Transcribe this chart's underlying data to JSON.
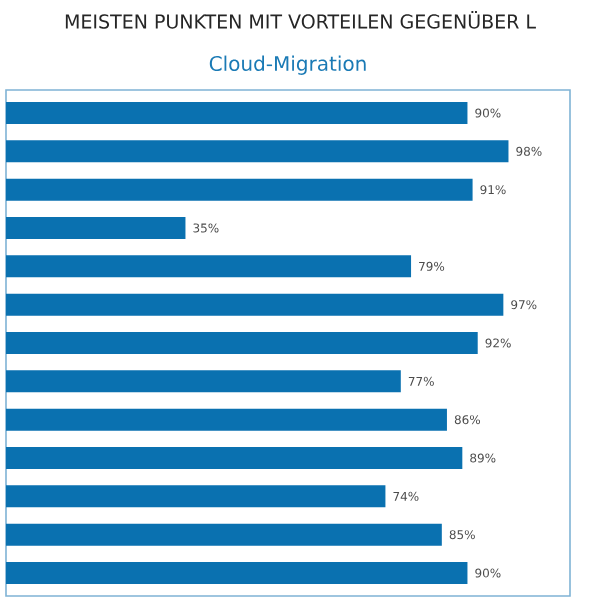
{
  "chart_data": {
    "type": "bar",
    "orientation": "horizontal",
    "title": "Cloud-Migration",
    "annotations": [
      "MEISTEN PUNKTEN MIT VORTEILEN GEGENÜBER L"
    ],
    "categories": [
      null,
      null,
      null,
      null,
      null,
      null,
      null,
      null,
      null,
      null,
      null,
      null,
      null
    ],
    "values": [
      90,
      98,
      91,
      35,
      79,
      97,
      92,
      77,
      86,
      89,
      74,
      85,
      90
    ],
    "value_labels": [
      "90%",
      "98%",
      "91%",
      "35%",
      "79%",
      "97%",
      "92%",
      "77%",
      "86%",
      "89%",
      "74%",
      "85%",
      "90%"
    ],
    "color": "#0a71b0",
    "xlim": [
      0,
      110
    ]
  }
}
